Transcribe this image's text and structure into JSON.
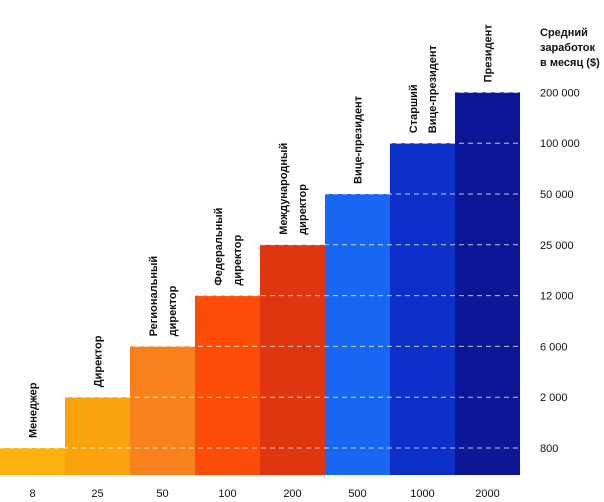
{
  "chart_data": {
    "type": "bar",
    "title": "",
    "ylabel": [
      "Средний",
      "заработок",
      "в месяц ($)"
    ],
    "xlabel": "",
    "y_ticks": [
      "200 000",
      "100 000",
      "50 000",
      "25 000",
      "12 000",
      "6 000",
      "2 000",
      "800"
    ],
    "x_ticks": [
      "8",
      "25",
      "50",
      "100",
      "200",
      "500",
      "1000",
      "2000"
    ],
    "categories": [
      [
        "Менеджер"
      ],
      [
        "Директор"
      ],
      [
        "Региональный",
        "директор"
      ],
      [
        "Федеральный",
        "директор"
      ],
      [
        "Международный",
        "директор"
      ],
      [
        "Вице-президент"
      ],
      [
        "Старший",
        "Вице-президент"
      ],
      [
        "Президент"
      ]
    ],
    "values": [
      800,
      2000,
      6000,
      12000,
      25000,
      50000,
      100000,
      200000
    ],
    "colors": [
      "#fbb20f",
      "#f9a20e",
      "#f7821c",
      "#fb4d08",
      "#e0360f",
      "#1767f2",
      "#0b2fc8",
      "#0c1696"
    ]
  }
}
